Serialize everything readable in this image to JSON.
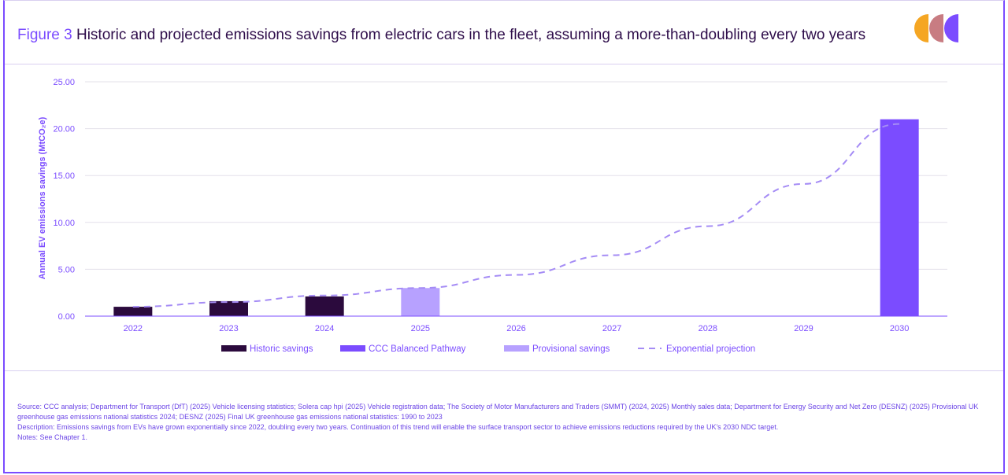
{
  "header": {
    "figure_label": "Figure 3",
    "title": "Historic and projected emissions savings from electric cars in the fleet, assuming a more-than-doubling every two years"
  },
  "colors": {
    "historic": "#2b0a3d",
    "ccc": "#7b4cff",
    "provisional": "#b7a1ff",
    "projection": "#a58cf5",
    "accent": "#7b4cff",
    "logo_orange": "#f5a623",
    "logo_pink": "#c87c82",
    "logo_purple": "#7b4cff"
  },
  "chart_data": {
    "type": "bar",
    "title": "Historic and projected emissions savings from electric cars in the fleet, assuming a more-than-doubling every two years",
    "xlabel": "",
    "ylabel": "Annual EV emissions savings (MtCO₂e)",
    "ylim": [
      0,
      25
    ],
    "yticks": [
      "0.00",
      "5.00",
      "10.00",
      "15.00",
      "20.00",
      "25.00"
    ],
    "ytick_values": [
      0,
      5,
      10,
      15,
      20,
      25
    ],
    "categories": [
      "2022",
      "2023",
      "2024",
      "2025",
      "2026",
      "2027",
      "2028",
      "2029",
      "2030"
    ],
    "series": [
      {
        "name": "Historic savings",
        "kind": "bar",
        "values": [
          1.0,
          1.6,
          2.1,
          null,
          null,
          null,
          null,
          null,
          null
        ]
      },
      {
        "name": "CCC Balanced Pathway",
        "kind": "bar",
        "values": [
          null,
          null,
          null,
          null,
          null,
          null,
          null,
          null,
          21.0
        ]
      },
      {
        "name": "Provisional savings",
        "kind": "bar",
        "values": [
          null,
          null,
          null,
          3.0,
          null,
          null,
          null,
          null,
          null
        ]
      },
      {
        "name": "Exponential projection",
        "kind": "dashed-line",
        "values": [
          1.0,
          1.5,
          2.2,
          3.0,
          4.4,
          6.5,
          9.6,
          14.1,
          20.5
        ]
      }
    ],
    "legend": [
      "Historic savings",
      "CCC Balanced Pathway",
      "Provisional savings",
      "Exponential projection"
    ],
    "legend_position": "bottom",
    "grid": true
  },
  "footer": {
    "source": "Source: CCC analysis; Department for Transport (DfT) (2025) Vehicle licensing statistics; Solera cap hpi (2025) Vehicle registration data; The Society of Motor Manufacturers and Traders (SMMT) (2024, 2025) Monthly sales data; Department for Energy Security and Net Zero (DESNZ) (2025) Provisional UK greenhouse gas emissions national statistics 2024; DESNZ (2025) Final UK greenhouse gas emissions national statistics: 1990 to 2023",
    "description": "Description: Emissions savings from EVs have grown exponentially since 2022, doubling every two years. Continuation of this trend will enable the surface transport sector to achieve emissions reductions required by the UK's 2030 NDC target.",
    "notes": "Notes: See Chapter 1."
  }
}
